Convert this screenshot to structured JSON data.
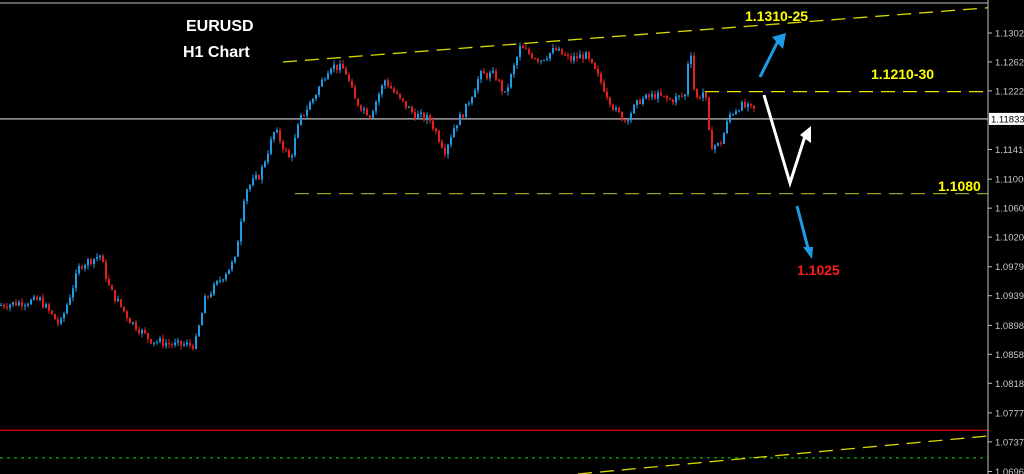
{
  "chart_data": {
    "type": "candlestick",
    "title": "EURUSD",
    "subtitle": "H1 Chart",
    "ylim": [
      1.06926,
      1.13476
    ],
    "y_ticks": [
      "1.13020",
      "1.12620",
      "1.12220",
      "1.11410",
      "1.11000",
      "1.10600",
      "1.10200",
      "1.09790",
      "1.09390",
      "1.08980",
      "1.08580",
      "1.08180",
      "1.07770",
      "1.07370",
      "1.06960"
    ],
    "current_price": "1.11833",
    "price_path": [
      [
        0,
        1.0926
      ],
      [
        40,
        1.0933
      ],
      [
        60,
        1.0898
      ],
      [
        80,
        1.0981
      ],
      [
        100,
        1.0995
      ],
      [
        110,
        1.0947
      ],
      [
        130,
        1.0905
      ],
      [
        150,
        1.0878
      ],
      [
        175,
        1.0871
      ],
      [
        195,
        1.0871
      ],
      [
        205,
        1.0933
      ],
      [
        220,
        1.0961
      ],
      [
        235,
        1.0988
      ],
      [
        245,
        1.1085
      ],
      [
        260,
        1.1106
      ],
      [
        275,
        1.1168
      ],
      [
        290,
        1.1126
      ],
      [
        300,
        1.1182
      ],
      [
        315,
        1.1216
      ],
      [
        330,
        1.1258
      ],
      [
        345,
        1.1251
      ],
      [
        355,
        1.1209
      ],
      [
        370,
        1.1189
      ],
      [
        385,
        1.1237
      ],
      [
        400,
        1.1209
      ],
      [
        415,
        1.1189
      ],
      [
        430,
        1.1182
      ],
      [
        445,
        1.114
      ],
      [
        455,
        1.1175
      ],
      [
        465,
        1.1195
      ],
      [
        480,
        1.1244
      ],
      [
        495,
        1.1244
      ],
      [
        505,
        1.1216
      ],
      [
        520,
        1.1281
      ],
      [
        540,
        1.1265
      ],
      [
        555,
        1.1279
      ],
      [
        570,
        1.1265
      ],
      [
        585,
        1.1272
      ],
      [
        600,
        1.1237
      ],
      [
        615,
        1.1195
      ],
      [
        625,
        1.1182
      ],
      [
        640,
        1.1209
      ],
      [
        655,
        1.1216
      ],
      [
        670,
        1.1209
      ],
      [
        685,
        1.1216
      ],
      [
        690,
        1.1292
      ],
      [
        695,
        1.1209
      ],
      [
        705,
        1.1223
      ],
      [
        710,
        1.1147
      ],
      [
        720,
        1.1147
      ],
      [
        730,
        1.1189
      ],
      [
        740,
        1.1202
      ],
      [
        755,
        1.1195
      ]
    ],
    "levels": [
      {
        "label": "1.1310-25",
        "price": 1.133,
        "color": "#ffff00"
      },
      {
        "label": "1.1210-30",
        "price": 1.1221,
        "color": "#ffff00"
      },
      {
        "label": "1.1080",
        "price": 1.108,
        "color": "#ffff00"
      },
      {
        "label": "1.1025",
        "price": 1.1025,
        "color": "#ff1a1a"
      }
    ],
    "horizontal_lines": [
      {
        "price": 1.1221,
        "style": "dashed",
        "color": "#e6e600"
      },
      {
        "price": 1.108,
        "style": "dashed",
        "color": "#9a9a1e"
      },
      {
        "price": 1.11833,
        "style": "solid",
        "color": "#a0a0a0"
      },
      {
        "price": 1.0753,
        "style": "solid",
        "color": "#d00000"
      },
      {
        "price": 1.0715,
        "style": "dotted",
        "color": "#00a000"
      }
    ],
    "colors": {
      "up": "#1e9be6",
      "down": "#e61e1e",
      "background": "#000000",
      "axis": "#c0c0c0",
      "trendline": "#d8d800"
    }
  }
}
